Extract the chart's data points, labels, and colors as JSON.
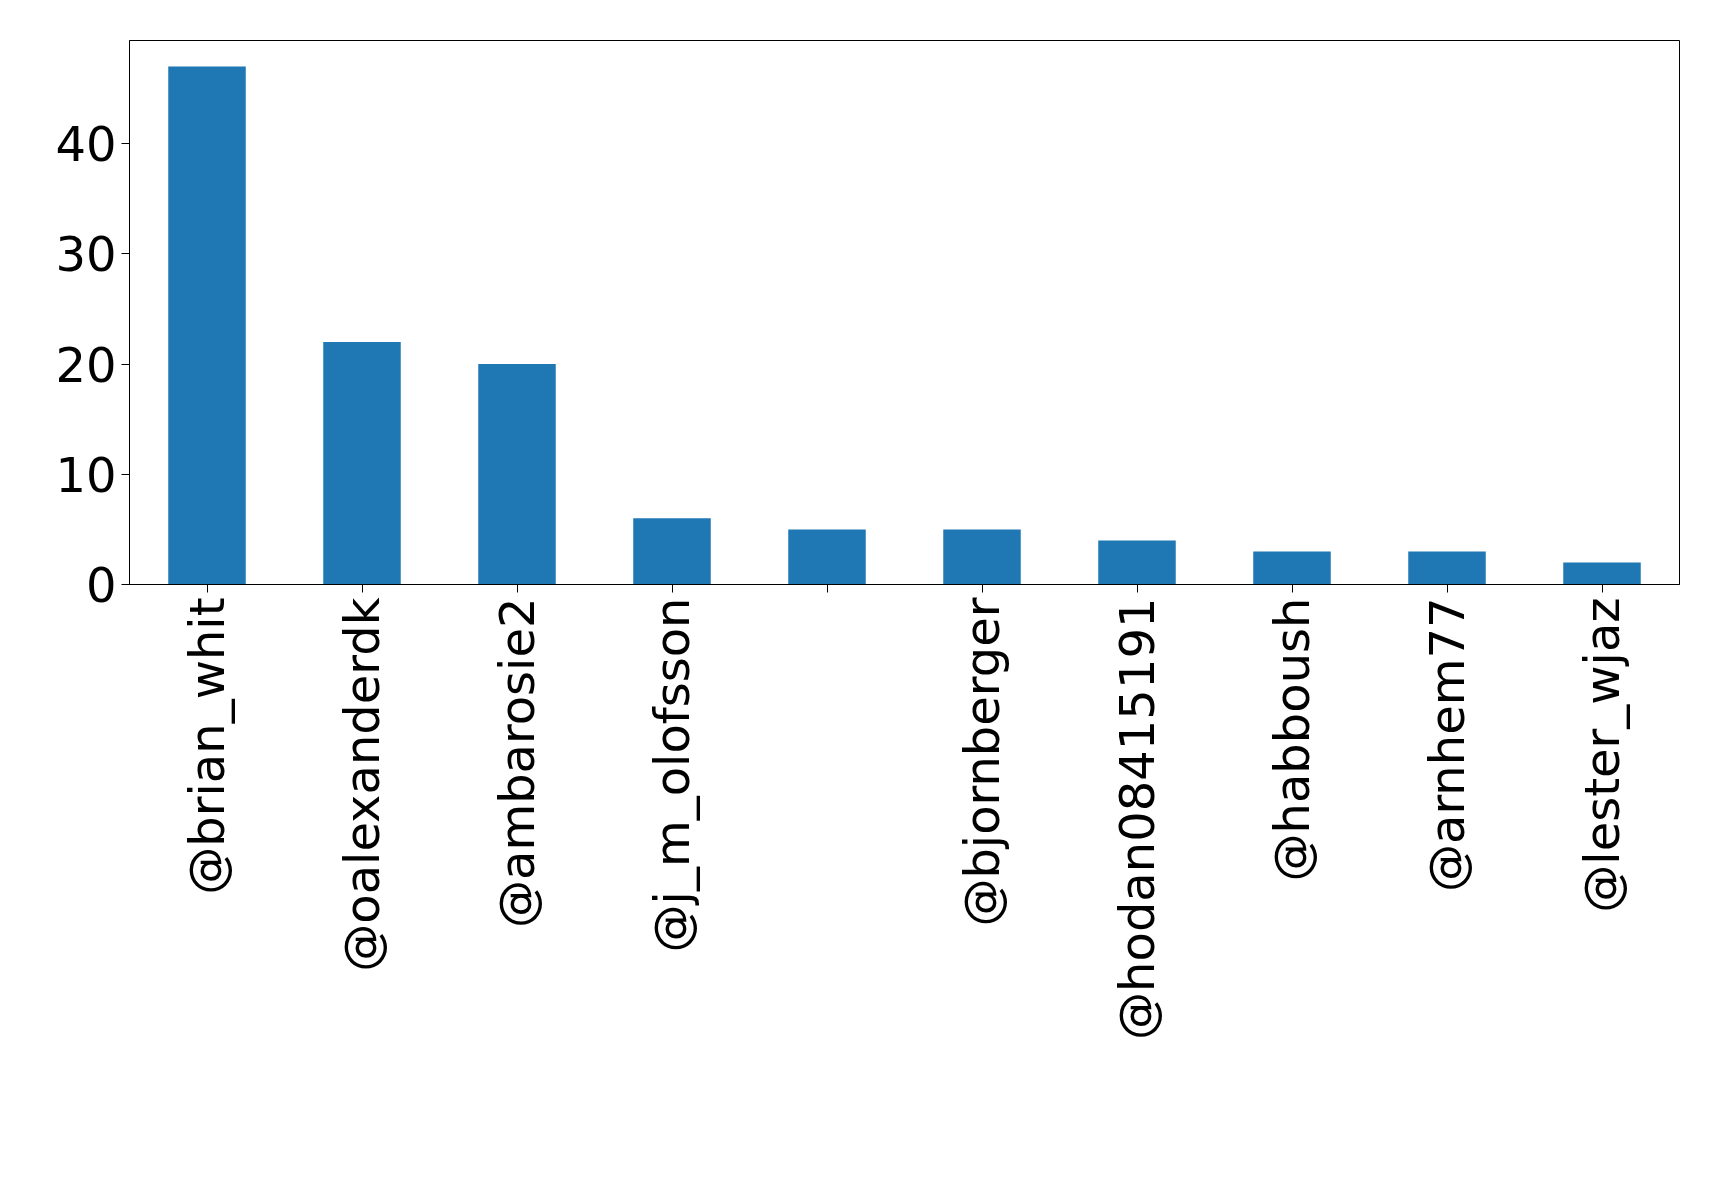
{
  "chart_data": {
    "type": "bar",
    "categories": [
      "@brian_whit",
      "@oalexanderdk",
      "@ambarosie2",
      "@j_m_olofsson",
      null,
      "@bjornberger",
      "@hodan08415191",
      "@habboush",
      "@arnhem77",
      "@lester_wjaz"
    ],
    "values": [
      47,
      22,
      20,
      6,
      5,
      5,
      4,
      3,
      3,
      2
    ],
    "color": "#1f77b4",
    "ylim": [
      0,
      49.35
    ],
    "yticks": [
      0,
      10,
      20,
      30,
      40
    ],
    "grid": false
  }
}
